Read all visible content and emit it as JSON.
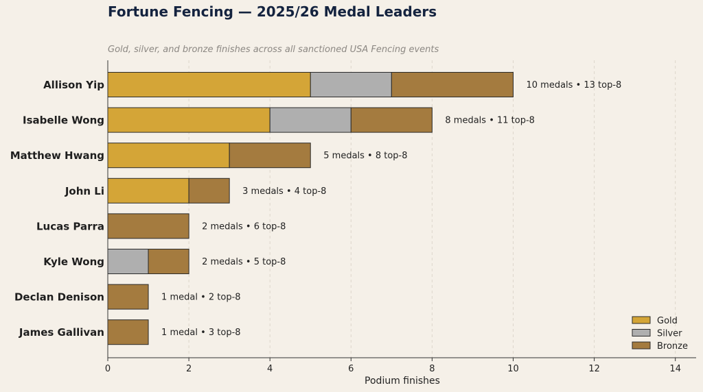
{
  "colors": {
    "background": "#f5f0e8",
    "title": "#14233f",
    "subtitle": "#8c8883",
    "gold": "#d4a537",
    "silver": "#afafaf",
    "bronze": "#a47b3f",
    "edge": "#2a2a2a",
    "grid": "#ddd6cb"
  },
  "chart_data": {
    "type": "bar",
    "orientation": "horizontal",
    "stacked": true,
    "title": "Fortune Fencing — 2025/26 Medal Leaders",
    "subtitle": "Gold, silver, and bronze finishes across all sanctioned USA Fencing events",
    "xlabel": "Podium finishes",
    "ylabel": "",
    "xlim": [
      0,
      14.5
    ],
    "xticks": [
      0,
      2,
      4,
      6,
      8,
      10,
      12,
      14
    ],
    "grid": "vertical dashed",
    "legend_position": "bottom-right",
    "categories": [
      "Allison Yip",
      "Isabelle Wong",
      "Matthew Hwang",
      "John Li",
      "Lucas Parra",
      "Kyle Wong",
      "Declan Denison",
      "James Gallivan"
    ],
    "series": [
      {
        "name": "Gold",
        "values": [
          5,
          4,
          3,
          2,
          0,
          0,
          0,
          0
        ]
      },
      {
        "name": "Silver",
        "values": [
          2,
          2,
          0,
          0,
          0,
          1,
          0,
          0
        ]
      },
      {
        "name": "Bronze",
        "values": [
          3,
          2,
          2,
          1,
          2,
          1,
          1,
          1
        ]
      }
    ],
    "annotations": [
      "10 medals  •  13 top-8",
      "8 medals  •  11 top-8",
      "5 medals  •  8 top-8",
      "3 medals  •  4 top-8",
      "2 medals  •  6 top-8",
      "2 medals  •  5 top-8",
      "1 medal  •  2 top-8",
      "1 medal  •  3 top-8"
    ]
  }
}
